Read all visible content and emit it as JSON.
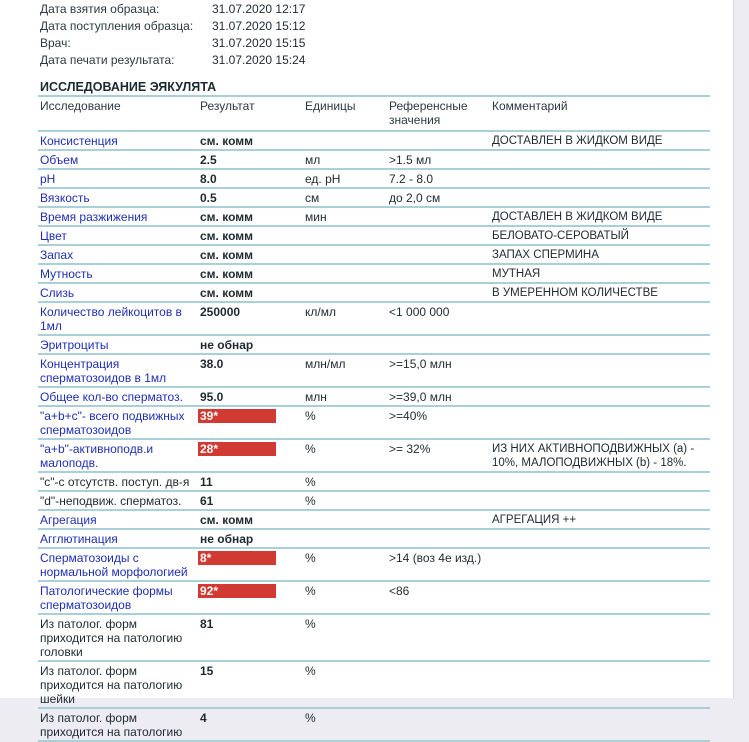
{
  "meta": [
    {
      "label": "Дата взятия образца:",
      "value": "31.07.2020 12:17"
    },
    {
      "label": "Дата поступления образца:",
      "value": "31.07.2020 15:12"
    },
    {
      "label": "Врач:",
      "value": "31.07.2020 15:15"
    },
    {
      "label": "Дата печати результата:",
      "value": "31.07.2020 15:24"
    }
  ],
  "section_title": "ИССЛЕДОВАНИЕ ЭЯКУЛЯТА",
  "columns": [
    "Исследование",
    "Результат",
    "Единицы",
    "Референсные значения",
    "Комментарий"
  ],
  "flag_color": "#d03a32",
  "rows": [
    {
      "name": "Консистенция",
      "result": "см. комм",
      "unit": "",
      "ref": "",
      "comment": "ДОСТАВЛЕН В ЖИДКОМ ВИДЕ"
    },
    {
      "name": "Объем",
      "result": "2.5",
      "unit": "мл",
      "ref": ">1.5 мл",
      "comment": ""
    },
    {
      "name": "pH",
      "result": "8.0",
      "unit": "ед. pH",
      "ref": "7.2 - 8.0",
      "comment": ""
    },
    {
      "name": "Вязкость",
      "result": "0.5",
      "unit": "см",
      "ref": "до 2,0 см",
      "comment": ""
    },
    {
      "name": "Время разжижения",
      "result": "см. комм",
      "unit": "мин",
      "ref": "",
      "comment": "ДОСТАВЛЕН В ЖИДКОМ ВИДЕ"
    },
    {
      "name": "Цвет",
      "result": "см. комм",
      "unit": "",
      "ref": "",
      "comment": "БЕЛОВАТО-СЕРОВАТЫЙ"
    },
    {
      "name": "Запах",
      "result": "см. комм",
      "unit": "",
      "ref": "",
      "comment": "ЗАПАХ СПЕРМИНА"
    },
    {
      "name": "Мутность",
      "result": "см. комм",
      "unit": "",
      "ref": "",
      "comment": "МУТНАЯ"
    },
    {
      "name": "Слизь",
      "result": "см. комм",
      "unit": "",
      "ref": "",
      "comment": "В УМЕРЕННОМ КОЛИЧЕСТВЕ"
    },
    {
      "name": "Количество лейкоцитов в 1мл",
      "result": "250000",
      "unit": "кл/мл",
      "ref": "<1 000 000",
      "comment": ""
    },
    {
      "name": "Эритроциты",
      "result": "не обнар",
      "unit": "",
      "ref": "",
      "comment": ""
    },
    {
      "name": "Концентрация сперматозоидов в 1мл",
      "result": "38.0",
      "unit": "млн/мл",
      "ref": ">=15,0 млн",
      "comment": ""
    },
    {
      "name": "Общее кол-во сперматоз.",
      "result": "95.0",
      "unit": "млн",
      "ref": ">=39,0 млн",
      "comment": ""
    },
    {
      "name": "\"a+b+c\"- всего подвижных сперматозоидов",
      "result": "39*",
      "flag": true,
      "unit": "%",
      "ref": ">=40%",
      "comment": ""
    },
    {
      "name": "\"a+b\"-активноподв.и малоподв.",
      "result": "28*",
      "flag": true,
      "unit": "%",
      "ref": ">= 32%",
      "comment": "ИЗ НИХ АКТИВНОПОДВИЖНЫХ (а) - 10%, МАЛОПОДВИЖНЫХ (b) - 18%."
    },
    {
      "name": "\"c\"-с отсутств. поступ. дв-я",
      "dark": true,
      "result": "11",
      "unit": "%",
      "ref": "",
      "comment": ""
    },
    {
      "name": "\"d\"-неподвиж. сперматоз.",
      "dark": true,
      "result": "61",
      "unit": "%",
      "ref": "",
      "comment": ""
    },
    {
      "name": "Агрегация",
      "result": "см. комм",
      "unit": "",
      "ref": "",
      "comment": "АГРЕГАЦИЯ ++"
    },
    {
      "name": "Агглютинация",
      "result": "не обнар",
      "unit": "",
      "ref": "",
      "comment": ""
    },
    {
      "name": "Сперматозоиды с нормальной морфологией",
      "result": "8*",
      "flag": true,
      "unit": "%",
      "ref": ">14 (воз 4е изд.)",
      "comment": ""
    },
    {
      "name": "Патологические формы сперматозоидов",
      "result": "92*",
      "flag": true,
      "unit": "%",
      "ref": "<86",
      "comment": ""
    },
    {
      "name": "Из патолог. форм приходится на патологию головки",
      "dark": true,
      "result": "81",
      "unit": "%",
      "ref": "",
      "comment": ""
    },
    {
      "name": "Из патолог. форм приходится на патологию шейки",
      "dark": true,
      "result": "15",
      "unit": "%",
      "ref": "",
      "comment": ""
    },
    {
      "name": "Из патолог. форм приходится на патологию",
      "dark": true,
      "result": "4",
      "unit": "%",
      "ref": "",
      "comment": ""
    }
  ]
}
